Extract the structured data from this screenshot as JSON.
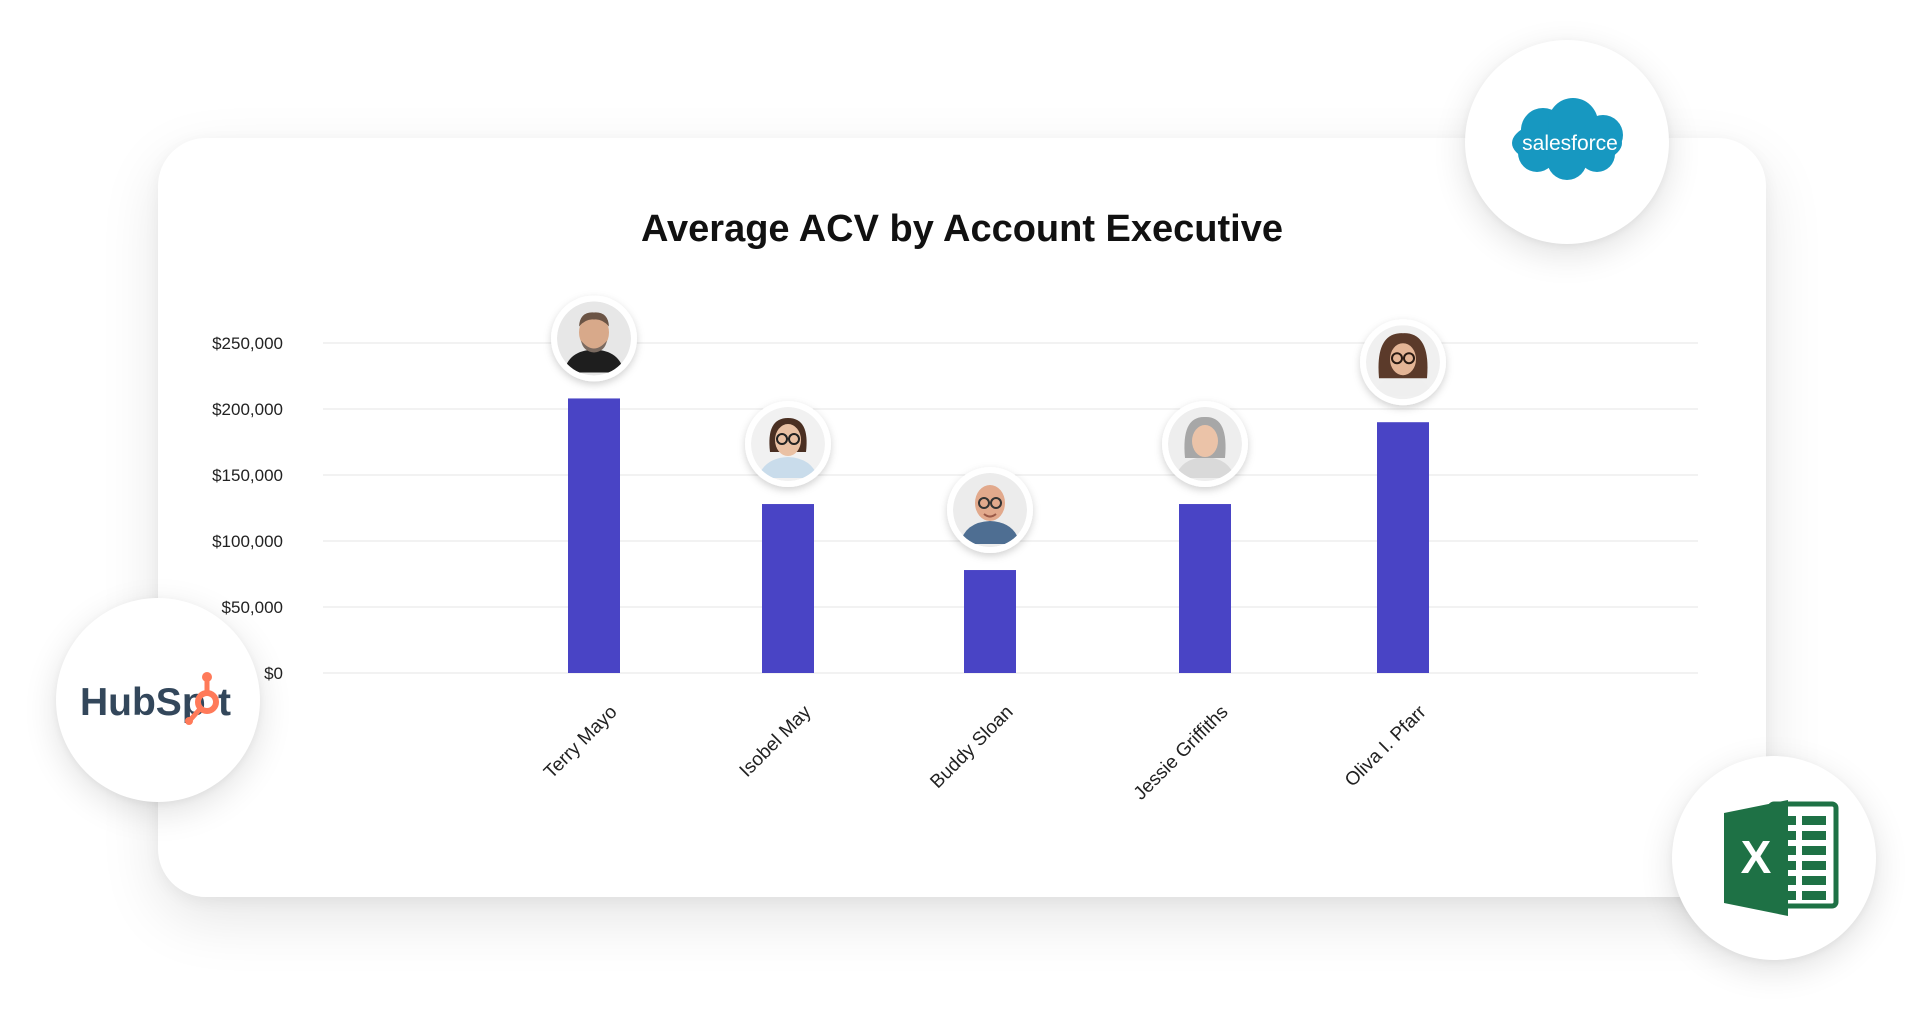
{
  "chart_data": {
    "type": "bar",
    "title": "Average ACV by Account Executive",
    "xlabel": "",
    "ylabel": "",
    "categories": [
      "Terry Mayo",
      "Isobel May",
      "Buddy Sloan",
      "Jessie Griffiths",
      "Oliva I. Pfarr"
    ],
    "values": [
      208000,
      128000,
      78000,
      128000,
      190000
    ],
    "ylim": [
      0,
      250000
    ],
    "yticks": [
      0,
      50000,
      100000,
      150000,
      200000,
      250000
    ],
    "ytick_labels": [
      "$0",
      "$50,000",
      "$100,000",
      "$150,000",
      "$200,000",
      "$250,000"
    ],
    "grid": true,
    "legend": "none",
    "bar_color": "#4944C5",
    "avatar_icons": [
      "avatar-man-beard-icon",
      "avatar-woman-glasses-icon",
      "avatar-man-bald-glasses-icon",
      "avatar-woman-gray-hair-icon",
      "avatar-woman-curly-hair-icon"
    ]
  },
  "integrations": {
    "salesforce": {
      "label": "salesforce",
      "color": "#1798C1"
    },
    "hubspot": {
      "label_pre": "HubSp",
      "label_post": "t",
      "color": "#33475B",
      "accent": "#FF7A59"
    },
    "excel": {
      "label": "X",
      "color": "#1E7145"
    }
  }
}
